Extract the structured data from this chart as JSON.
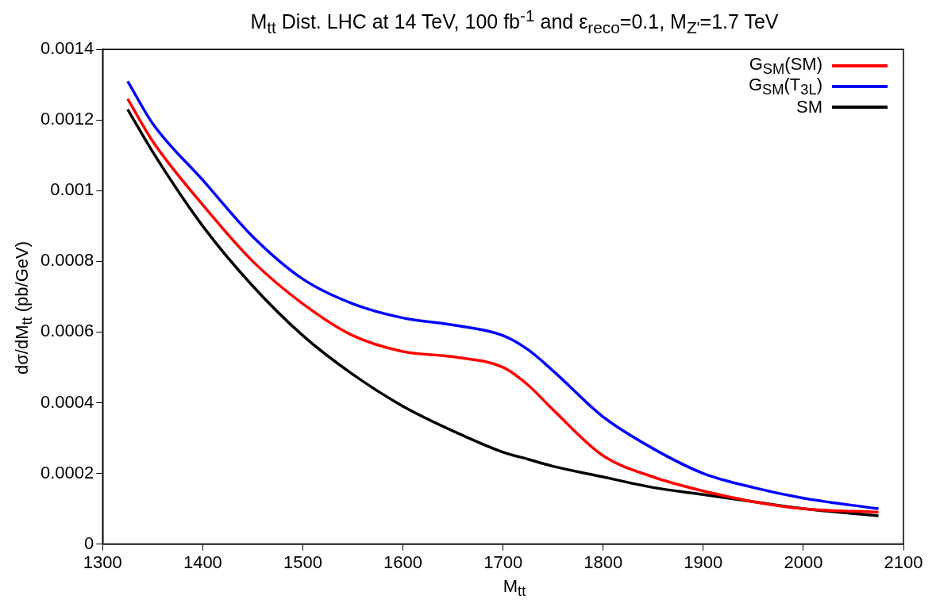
{
  "chart_data": {
    "type": "line",
    "title": "M$_{tt}$ Dist. LHC at 14 TeV, 100 fb$^{-1}$ and ε$_{reco}$=0.1, M$_{Z'}$=1.7 TeV",
    "xlabel": "M$_{tt}$",
    "ylabel": "dσ/dM$_{tt}$ (pb/GeV)",
    "x": [
      1325,
      1350,
      1400,
      1450,
      1500,
      1550,
      1600,
      1650,
      1700,
      1725,
      1750,
      1800,
      1850,
      1900,
      1950,
      2000,
      2075
    ],
    "series": [
      {
        "name": "G$_{SM}$(SM)",
        "color": "#ff0000",
        "values": [
          0.00126,
          0.00114,
          0.00096,
          0.0008,
          0.00068,
          0.00059,
          0.000545,
          0.00053,
          0.0005,
          0.00045,
          0.00038,
          0.00025,
          0.00019,
          0.00015,
          0.00012,
          0.0001,
          9e-05
        ]
      },
      {
        "name": "G$_{SM}$(T$_{3L}$)",
        "color": "#0000ff",
        "values": [
          0.00131,
          0.00119,
          0.00103,
          0.00087,
          0.00075,
          0.00068,
          0.00064,
          0.00062,
          0.00059,
          0.00055,
          0.00049,
          0.00036,
          0.00027,
          0.0002,
          0.00016,
          0.00013,
          0.0001
        ]
      },
      {
        "name": "SM",
        "color": "#000000",
        "values": [
          0.00123,
          0.00111,
          0.0009,
          0.00073,
          0.00059,
          0.00048,
          0.00039,
          0.00032,
          0.00026,
          0.00024,
          0.00022,
          0.00019,
          0.00016,
          0.00014,
          0.00012,
          0.0001,
          8e-05
        ]
      }
    ],
    "xlim": [
      1300,
      2100
    ],
    "xticks": [
      1300,
      1400,
      1500,
      1600,
      1700,
      1800,
      1900,
      2000,
      2100
    ],
    "ylim": [
      0,
      0.0014
    ],
    "yticks": [
      0,
      0.0002,
      0.0004,
      0.0006,
      0.0008,
      0.001,
      0.0012,
      0.0014
    ],
    "legend": "top right",
    "marker": "none",
    "line_style": "solid",
    "grid": false
  }
}
